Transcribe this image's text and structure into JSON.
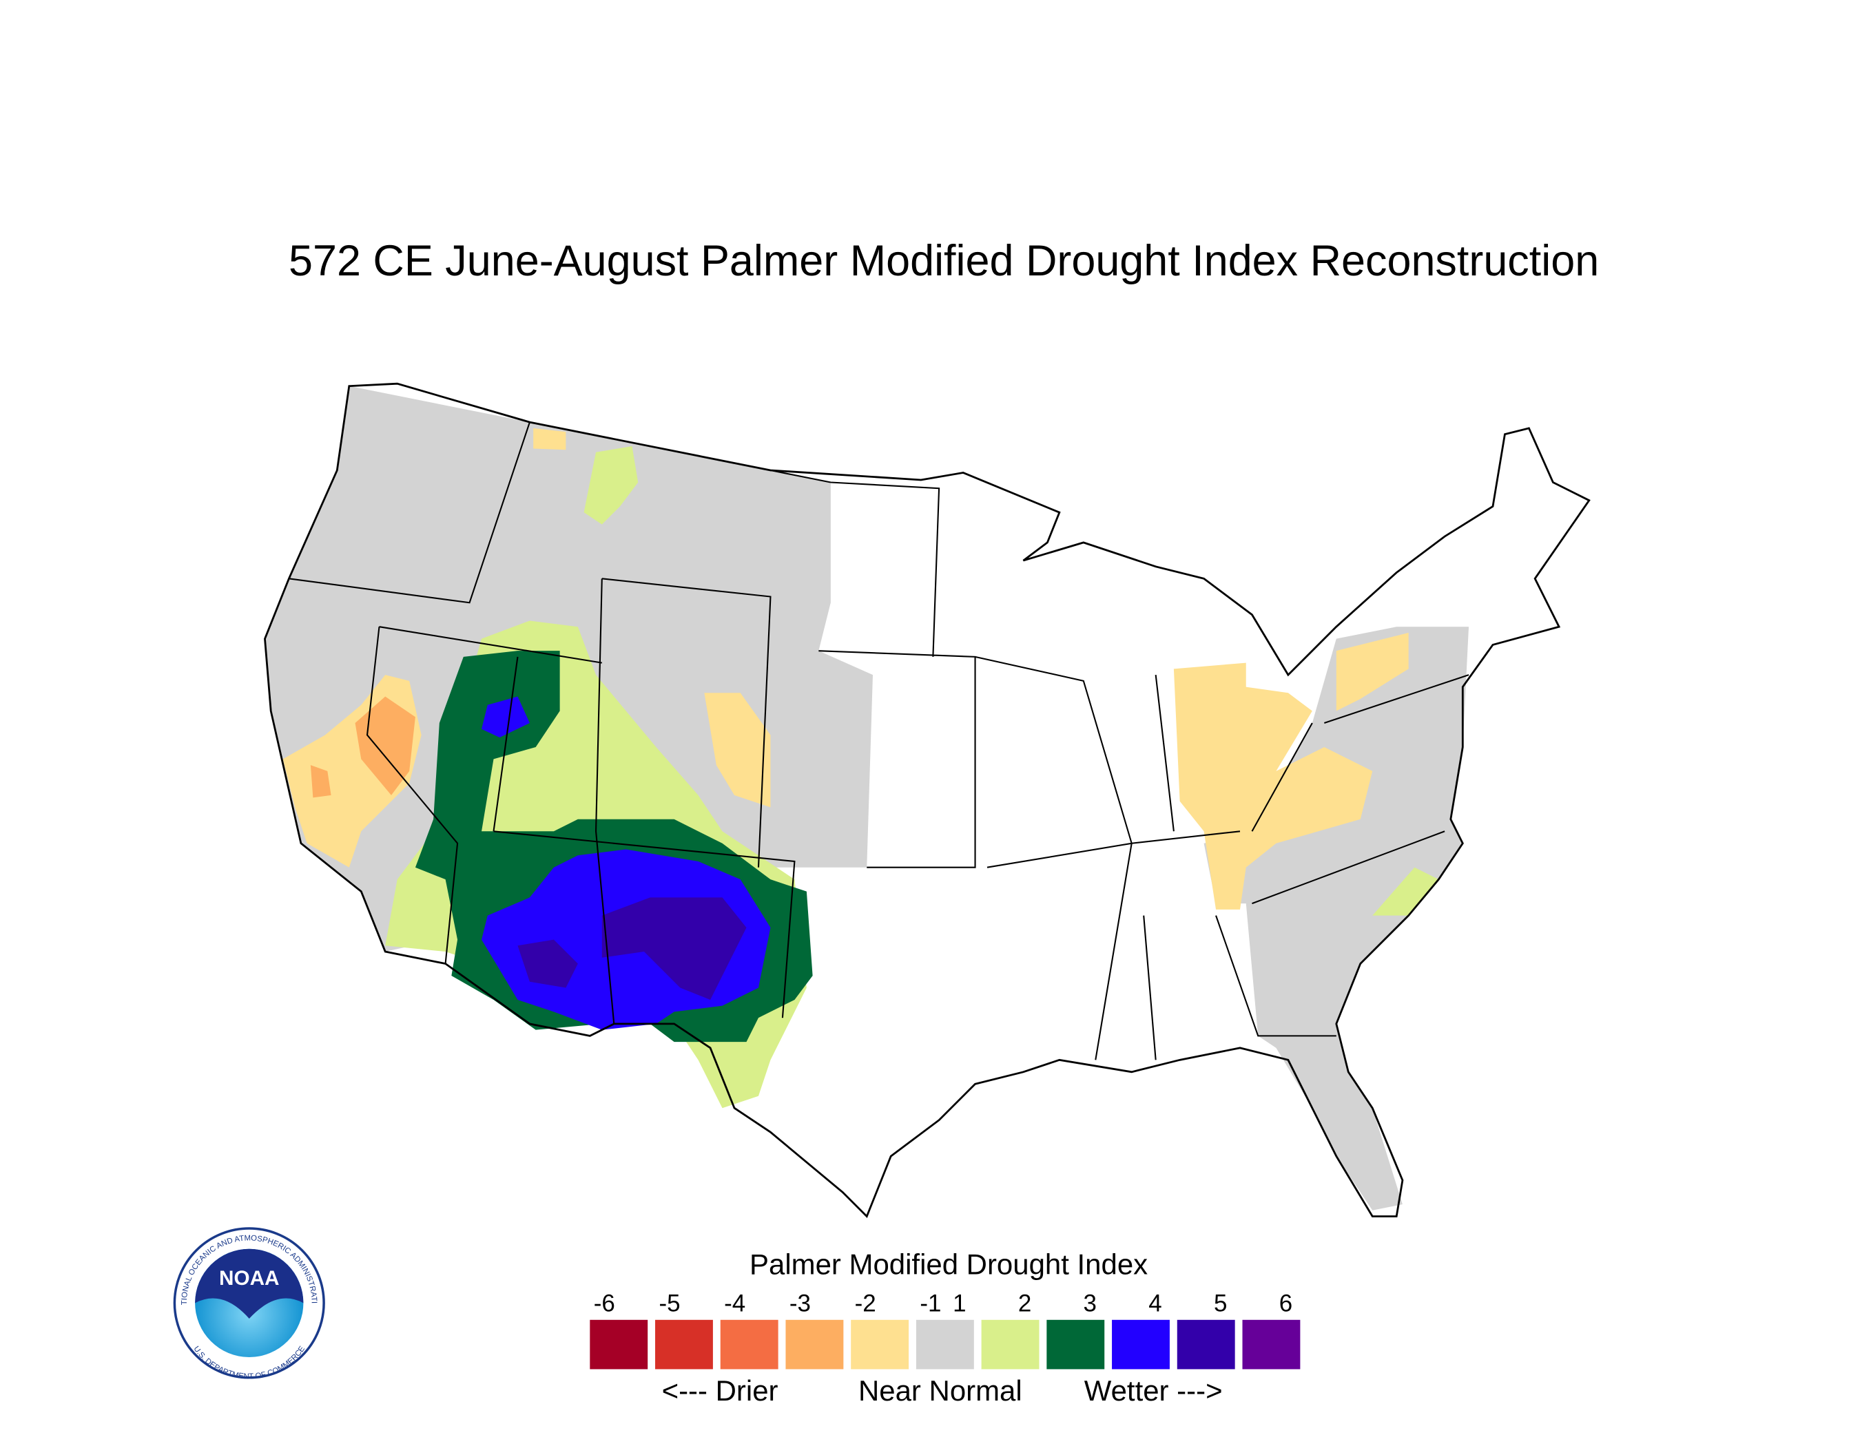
{
  "title": "572 CE  June-August  Palmer Modified Drought Index Reconstruction",
  "legend": {
    "title": "Palmer Modified Drought Index",
    "ticks": [
      -6,
      -5,
      -4,
      -3,
      -2,
      -1,
      1,
      2,
      3,
      4,
      5,
      6
    ],
    "colors": [
      "#a50026",
      "#d73027",
      "#f46d43",
      "#fdae61",
      "#fee090",
      "#d3d3d3",
      "#d9ef8b",
      "#006837",
      "#2200ff",
      "#3300aa",
      "#660099"
    ],
    "annotations": [
      "<--- Drier",
      "Near Normal",
      "Wetter --->"
    ]
  },
  "logo": {
    "text": "NOAA",
    "ring_top": "NATIONAL OCEANIC AND ATMOSPHERIC ADMINISTRATION",
    "ring_bottom": "U.S. DEPARTMENT OF COMMERCE"
  }
}
